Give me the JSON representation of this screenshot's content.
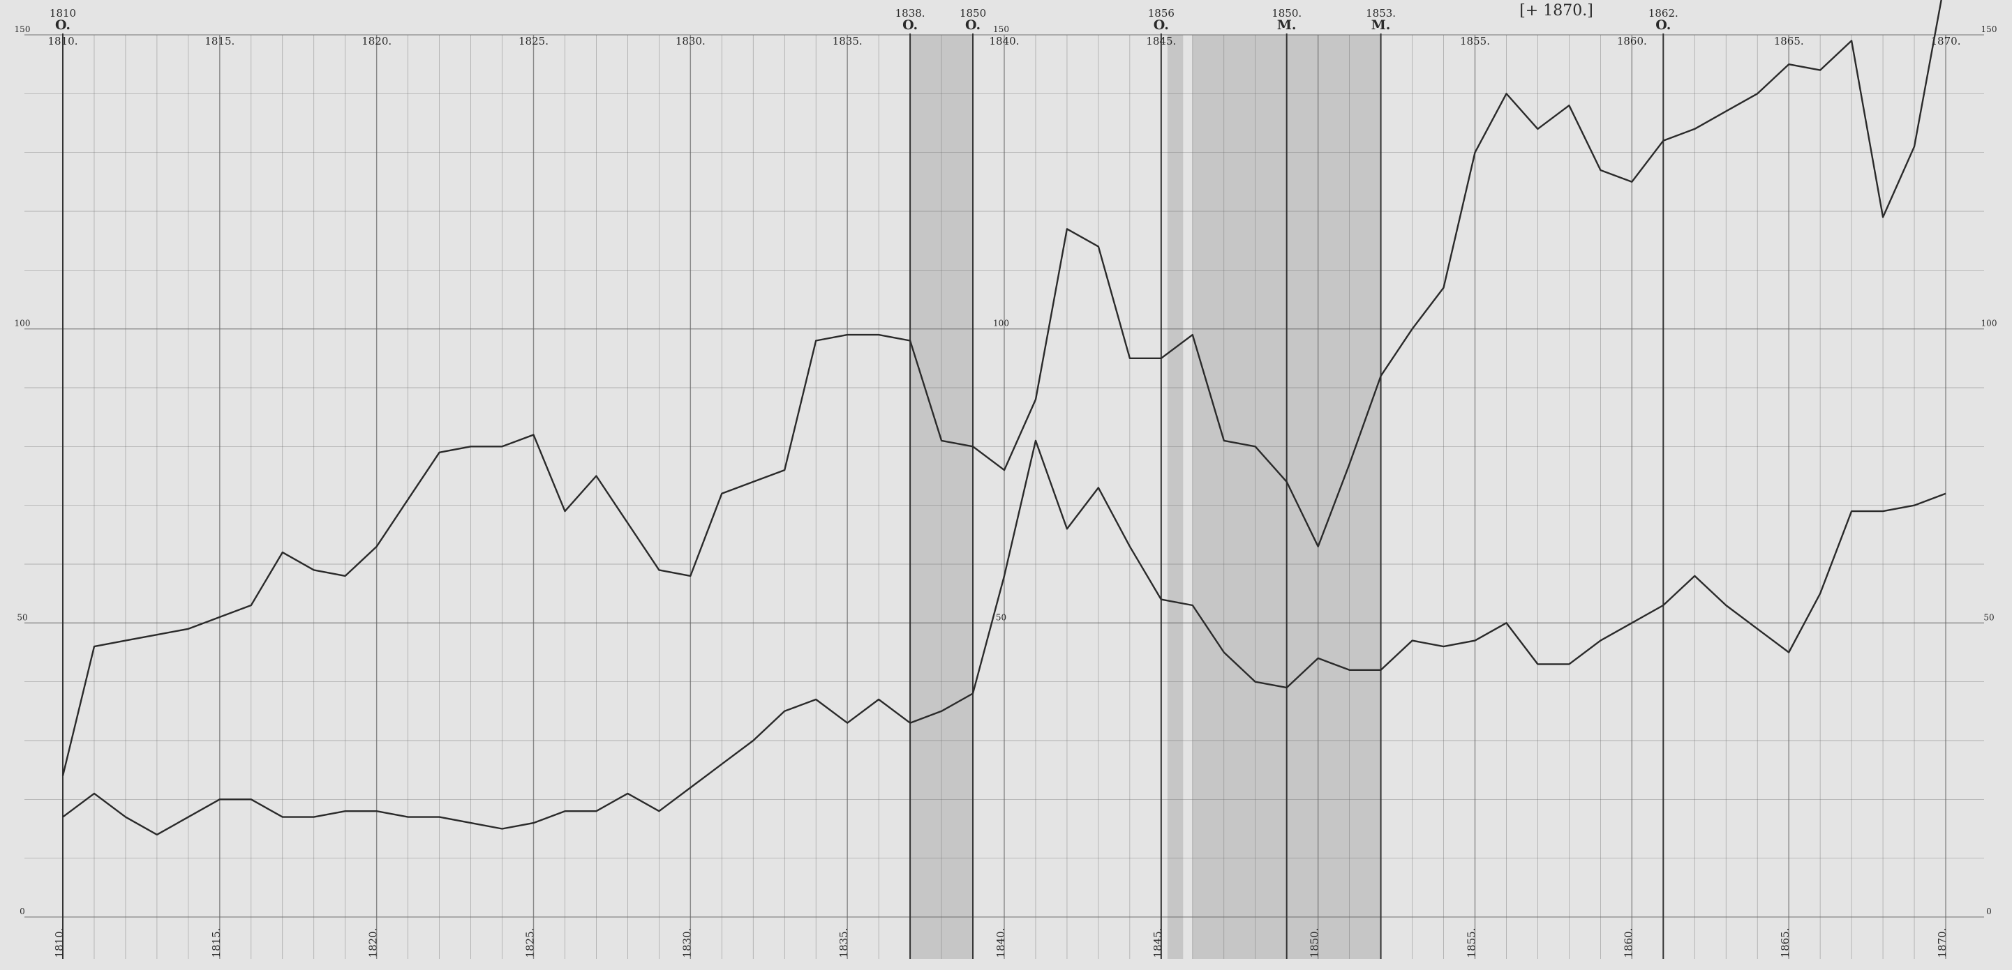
{
  "chart_data": {
    "type": "line",
    "title": "",
    "xlabel": "",
    "ylabel": "",
    "xlim": [
      1810,
      1870
    ],
    "ylim": [
      0,
      150
    ],
    "grid": true,
    "x_ticks_top": [
      "1810.",
      "1815.",
      "1820.",
      "1825.",
      "1830.",
      "1835.",
      "1840.",
      "1845.",
      "1855.",
      "1860.",
      "1865.",
      "1870."
    ],
    "x_ticks_bottom": [
      "1810.",
      "1815.",
      "1820.",
      "1825.",
      "1830.",
      "1835.",
      "1840.",
      "1845.",
      "1850.",
      "1855.",
      "1860.",
      "1865.",
      "1870."
    ],
    "y_ticks_left": [
      "0",
      "50",
      "100",
      "150"
    ],
    "y_ticks_inner": [
      "50",
      "100",
      "150"
    ],
    "y_ticks_right": [
      "0",
      "50",
      "100",
      "150"
    ],
    "shaded_periods": [
      [
        1837,
        1839
      ],
      [
        1845.2,
        1845.7
      ],
      [
        1846,
        1852
      ]
    ],
    "markers": [
      {
        "year": 1810,
        "label": "1810",
        "sub": "O."
      },
      {
        "year": 1837,
        "label": "1838.",
        "sub": "O."
      },
      {
        "year": 1839,
        "label": "1850",
        "sub": "O."
      },
      {
        "year": 1845,
        "label": "1856",
        "sub": "O."
      },
      {
        "year": 1849,
        "label": "1850.",
        "sub": "M."
      },
      {
        "year": 1852,
        "label": "1853.",
        "sub": "M."
      },
      {
        "year": 1861,
        "label": "1862.",
        "sub": "O."
      }
    ],
    "bracket_note": "[+ 1870.]",
    "x": [
      1810,
      1811,
      1812,
      1813,
      1814,
      1815,
      1816,
      1817,
      1818,
      1819,
      1820,
      1821,
      1822,
      1823,
      1824,
      1825,
      1826,
      1827,
      1828,
      1829,
      1830,
      1831,
      1832,
      1833,
      1834,
      1835,
      1836,
      1837,
      1838,
      1839,
      1840,
      1841,
      1842,
      1843,
      1844,
      1845,
      1846,
      1847,
      1848,
      1849,
      1850,
      1851,
      1852,
      1853,
      1854,
      1855,
      1856,
      1857,
      1858,
      1859,
      1860,
      1861,
      1862,
      1863,
      1864,
      1865,
      1866,
      1867,
      1868,
      1869,
      1870
    ],
    "series": [
      {
        "values": [
          24,
          46,
          47,
          48,
          49,
          51,
          53,
          62,
          59,
          58,
          63,
          71,
          79,
          80,
          80,
          82,
          69,
          75,
          67,
          59,
          58,
          72,
          74,
          76,
          98,
          99,
          99,
          98,
          81,
          80,
          76,
          88,
          117,
          114,
          95,
          95,
          99,
          81,
          80,
          74,
          63,
          77,
          92,
          100,
          107,
          130,
          140,
          134,
          138,
          127,
          125,
          132,
          134,
          137,
          140,
          145,
          144,
          149,
          119,
          131,
          160
        ]
      },
      {
        "values": [
          17,
          21,
          17,
          14,
          17,
          20,
          20,
          17,
          17,
          18,
          18,
          17,
          17,
          16,
          15,
          16,
          18,
          18,
          21,
          18,
          22,
          26,
          30,
          35,
          37,
          33,
          37,
          33,
          35,
          38,
          58,
          81,
          66,
          73,
          63,
          54,
          53,
          45,
          40,
          39,
          44,
          42,
          42,
          47,
          46,
          47,
          50,
          43,
          43,
          47,
          50,
          53,
          58,
          53,
          49,
          45,
          55,
          69,
          69,
          70,
          72
        ]
      }
    ]
  }
}
